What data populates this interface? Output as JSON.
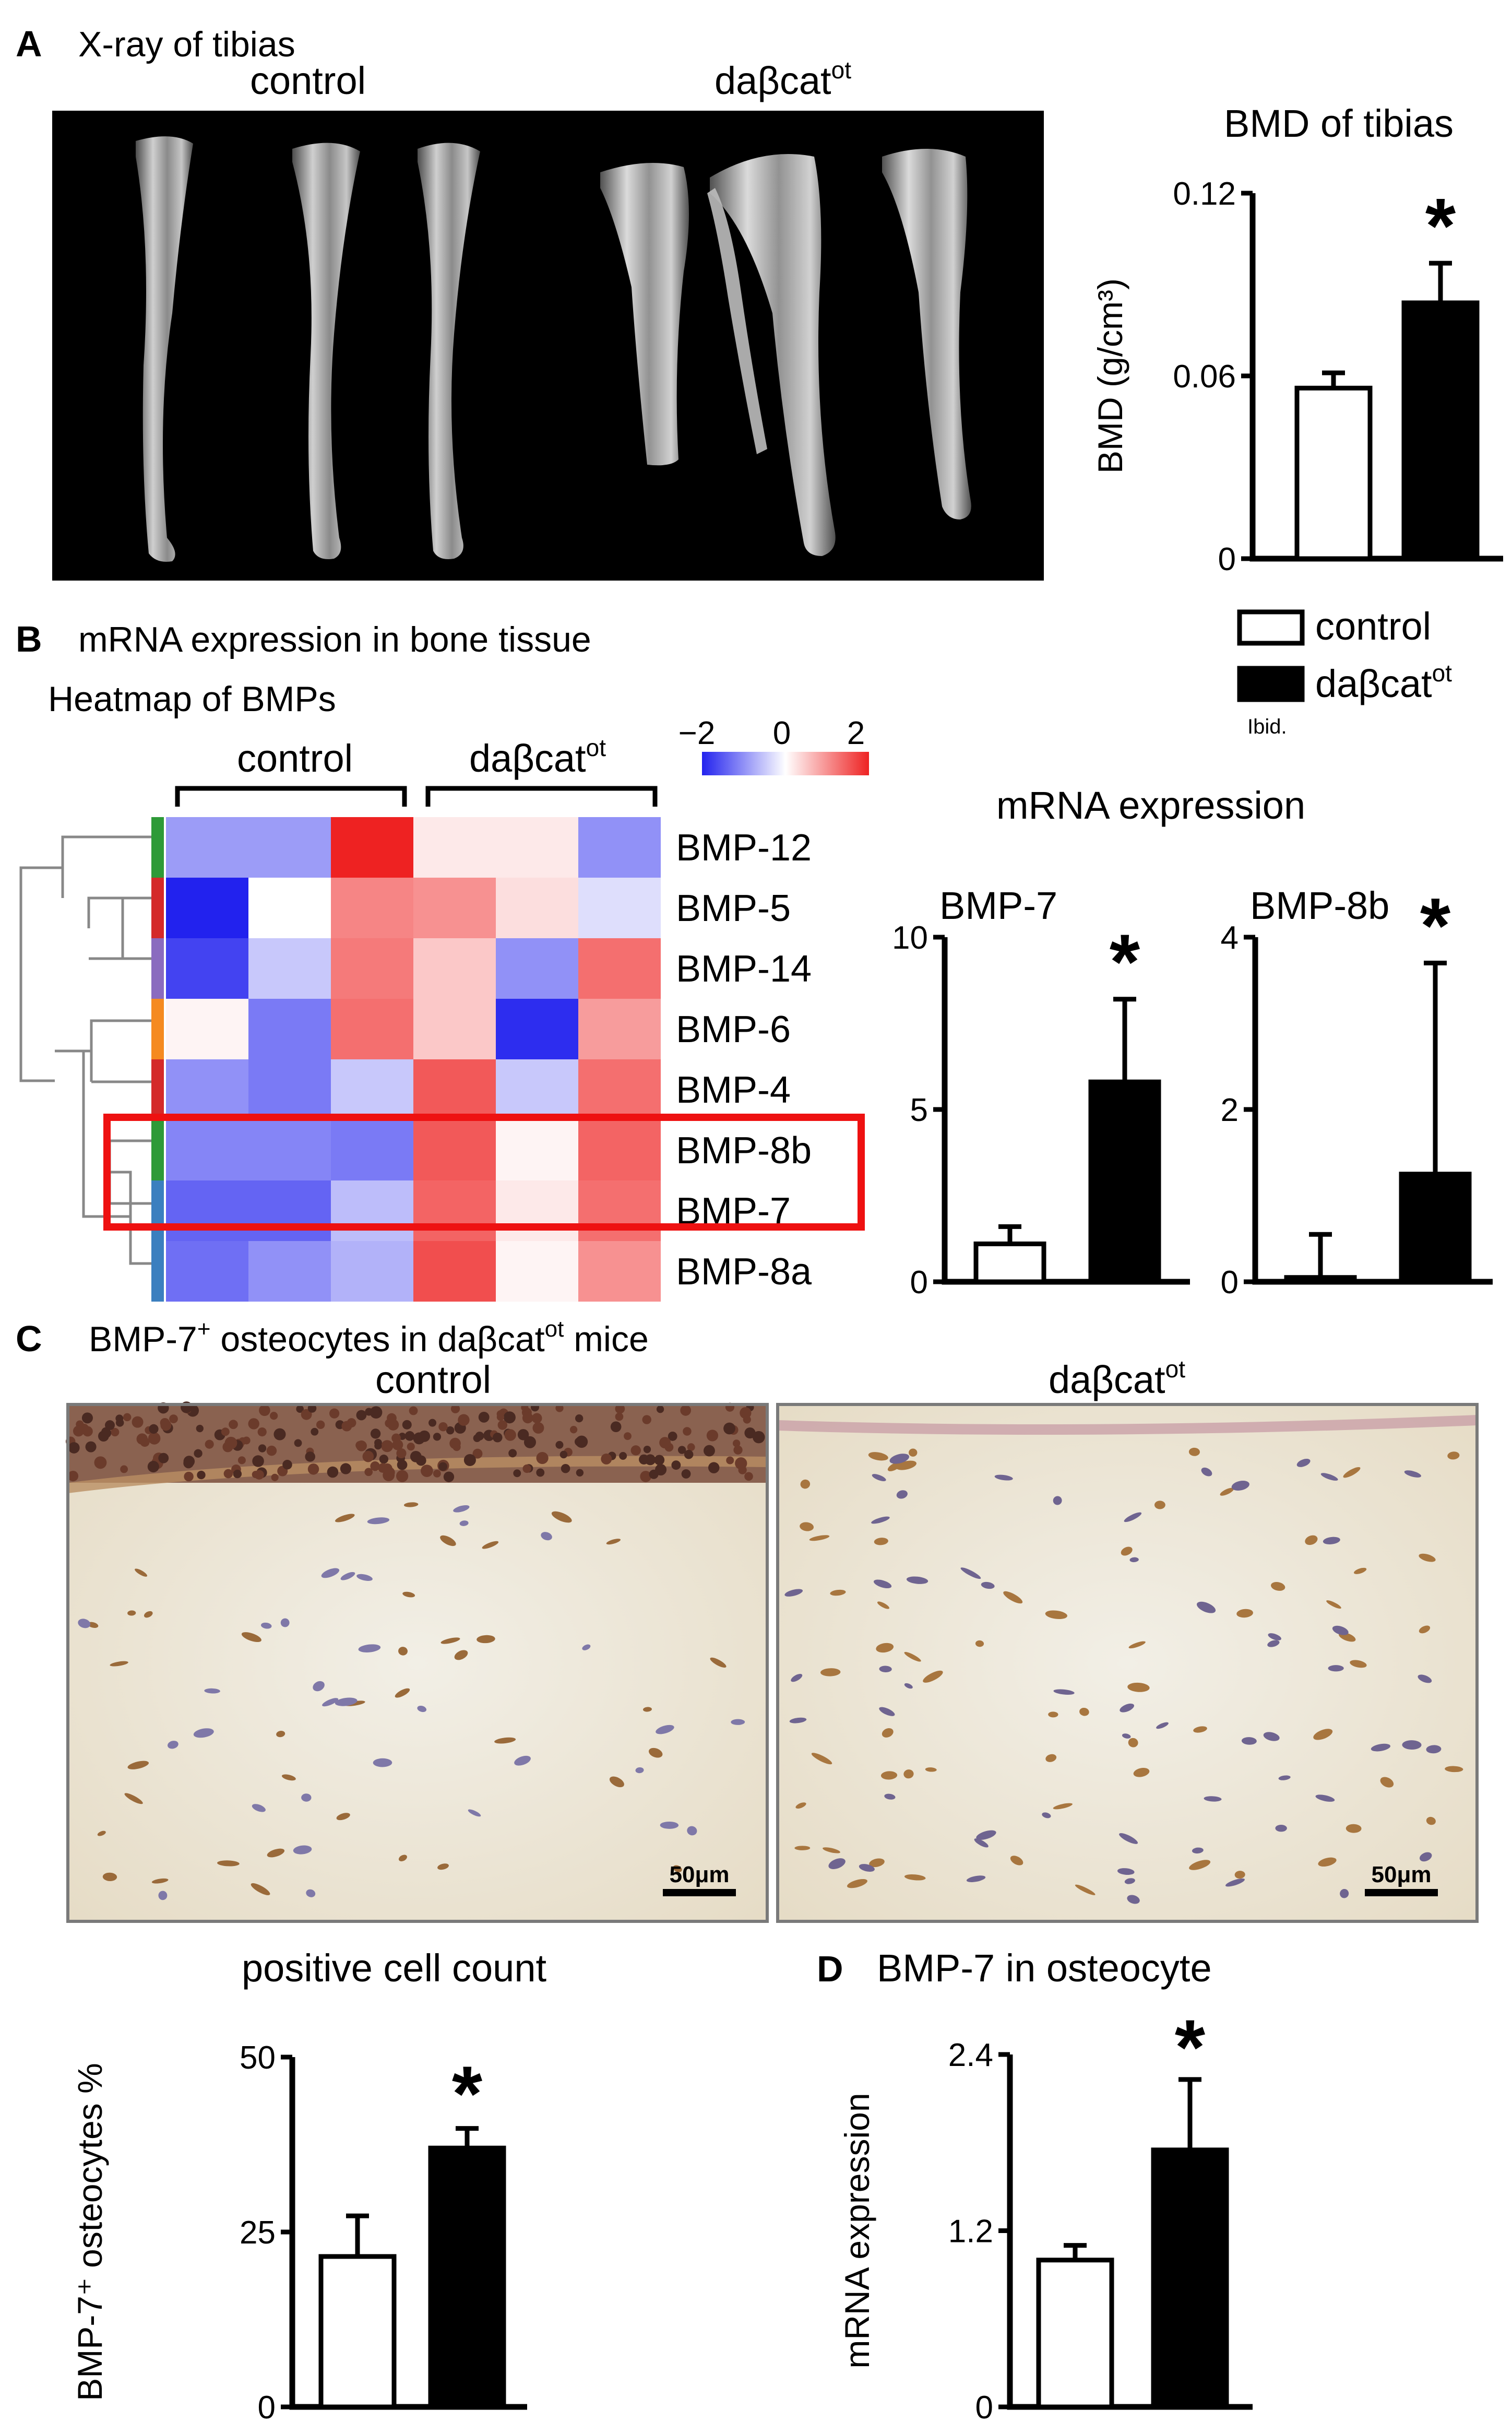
{
  "panel_a": {
    "letter": "A",
    "title": "X-ray of tibias",
    "xray_labels": [
      "control",
      "daβcat",
      "ot"
    ],
    "bmd_chart_title": "BMD of tibias",
    "legend": {
      "control": "control",
      "treated": "daβcat",
      "treated_sup": "ot",
      "note": "Ibid."
    }
  },
  "panel_b": {
    "letter": "B",
    "title": "mRNA expression in bone tissue",
    "heatmap_title": "Heatmap of BMPs",
    "group_labels": [
      "control",
      "daβcat",
      "ot"
    ],
    "scale_ticks": [
      "−2",
      "0",
      "2"
    ],
    "rows": [
      "BMP-12",
      "BMP-5",
      "BMP-14",
      "BMP-6",
      "BMP-4",
      "BMP-8b",
      "BMP-7",
      "BMP-8a"
    ],
    "row_group_colors": [
      "#2e9a38",
      "#d42a2a",
      "#8a6bbf",
      "#f58a20",
      "#d42a2a",
      "#2e9a38",
      "#3b7fbf",
      "#3b7fbf"
    ],
    "heat_values": [
      [
        -0.9,
        -0.9,
        2.0,
        0.2,
        0.2,
        -1.0
      ],
      [
        -2.0,
        0.0,
        1.1,
        1.0,
        0.3,
        -0.3
      ],
      [
        -1.7,
        -0.5,
        1.2,
        0.5,
        -1.0,
        1.3
      ],
      [
        0.1,
        -1.2,
        1.3,
        0.5,
        -1.9,
        0.9
      ],
      [
        -1.0,
        -1.2,
        -0.5,
        1.5,
        -0.5,
        1.3
      ],
      [
        -1.1,
        -1.1,
        -1.2,
        1.5,
        0.1,
        1.4
      ],
      [
        -1.4,
        -1.4,
        -0.6,
        1.4,
        0.2,
        1.3
      ],
      [
        -1.3,
        -1.0,
        -0.7,
        1.6,
        0.1,
        1.0
      ]
    ],
    "mrna_title": "mRNA expression"
  },
  "panel_c": {
    "letter": "C",
    "title_pre": "BMP-7",
    "title_sup": "+",
    "title_mid": " osteocytes in daβcat",
    "title_sup2": "ot",
    "title_post": " mice",
    "photo_labels": [
      "control",
      "daβcat",
      "ot"
    ],
    "scale_bar": "50μm",
    "count_title": "positive cell count"
  },
  "panel_d": {
    "letter": "D",
    "title": "BMP-7 in osteocyte"
  },
  "colors": {
    "control": "#ffffff",
    "treated": "#000000",
    "heat_low": "#2222ee",
    "heat_high": "#ee2222"
  },
  "chart_data": [
    {
      "type": "bar",
      "title": "BMD of tibias",
      "categories": [
        "control",
        "daβcat"
      ],
      "values": [
        0.056,
        0.084
      ],
      "errors": [
        0.005,
        0.013
      ],
      "ylabel": "BMD (g/cm³)",
      "ylim": [
        0,
        0.12
      ],
      "yticks": [
        "0",
        "0.06",
        "0.12"
      ],
      "significance": [
        "",
        "*"
      ]
    },
    {
      "type": "bar",
      "title": "BMP-7",
      "categories": [
        "control",
        "daβcat"
      ],
      "values": [
        1.1,
        5.8
      ],
      "errors": [
        0.5,
        2.4
      ],
      "ylabel": "",
      "ylim": [
        0,
        10
      ],
      "yticks": [
        "0",
        "5",
        "10"
      ],
      "significance": [
        "",
        "*"
      ]
    },
    {
      "type": "bar",
      "title": "BMP-8b",
      "categories": [
        "control",
        "daβcat"
      ],
      "values": [
        0.05,
        1.25
      ],
      "errors": [
        0.5,
        2.45
      ],
      "ylabel": "",
      "ylim": [
        0,
        4
      ],
      "yticks": [
        "0",
        "2",
        "4"
      ],
      "significance": [
        "",
        "*"
      ]
    },
    {
      "type": "bar",
      "title": "positive cell count",
      "categories": [
        "control",
        "daβcat"
      ],
      "values": [
        21.5,
        37.0
      ],
      "errors": [
        5.8,
        2.8
      ],
      "ylabel": "BMP-7⁺ osteocytes %",
      "ylim": [
        0,
        50
      ],
      "yticks": [
        "0",
        "25",
        "50"
      ],
      "significance": [
        "",
        "*"
      ]
    },
    {
      "type": "bar",
      "title": "BMP-7 in osteocyte",
      "categories": [
        "control",
        "daβcat"
      ],
      "values": [
        1.0,
        1.75
      ],
      "errors": [
        0.1,
        0.48
      ],
      "ylabel": "mRNA expression",
      "ylim": [
        0,
        2.4
      ],
      "yticks": [
        "0",
        "1.2",
        "2.4"
      ],
      "significance": [
        "",
        "*"
      ]
    }
  ]
}
